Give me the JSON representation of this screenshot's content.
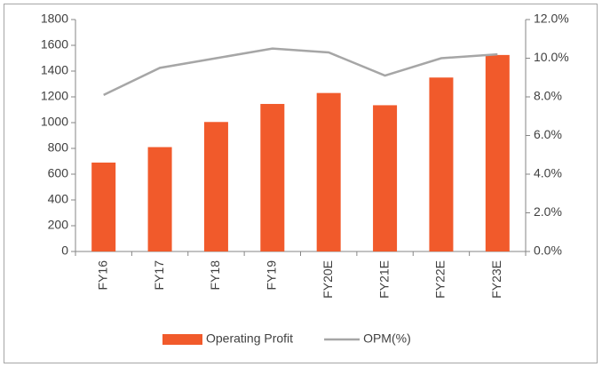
{
  "chart_data": {
    "type": "bar_line",
    "categories": [
      "FY16",
      "FY17",
      "FY18",
      "FY19",
      "FY20E",
      "FY21E",
      "FY22E",
      "FY23E"
    ],
    "series": [
      {
        "name": "Operating Profit",
        "type": "bar",
        "color": "#f15a2b",
        "values": [
          690,
          810,
          1005,
          1145,
          1230,
          1135,
          1350,
          1525
        ]
      },
      {
        "name": "OPM(%)",
        "type": "line",
        "axis": "y2",
        "color": "#a6a6a6",
        "values": [
          8.1,
          9.5,
          10.0,
          10.5,
          10.3,
          9.1,
          10.0,
          10.2
        ]
      }
    ],
    "ylim": [
      0,
      1800
    ],
    "yticks": [
      0,
      200,
      400,
      600,
      800,
      1000,
      1200,
      1400,
      1600,
      1800
    ],
    "y2lim": [
      0,
      12
    ],
    "y2ticks": [
      {
        "value": 0,
        "label": "0.0%"
      },
      {
        "value": 2,
        "label": "2.0%"
      },
      {
        "value": 4,
        "label": "4.0%"
      },
      {
        "value": 6,
        "label": "6.0%"
      },
      {
        "value": 8,
        "label": "8.0%"
      },
      {
        "value": 10,
        "label": "10.0%"
      },
      {
        "value": 12,
        "label": "12.0%"
      }
    ],
    "legend": "bottom"
  }
}
